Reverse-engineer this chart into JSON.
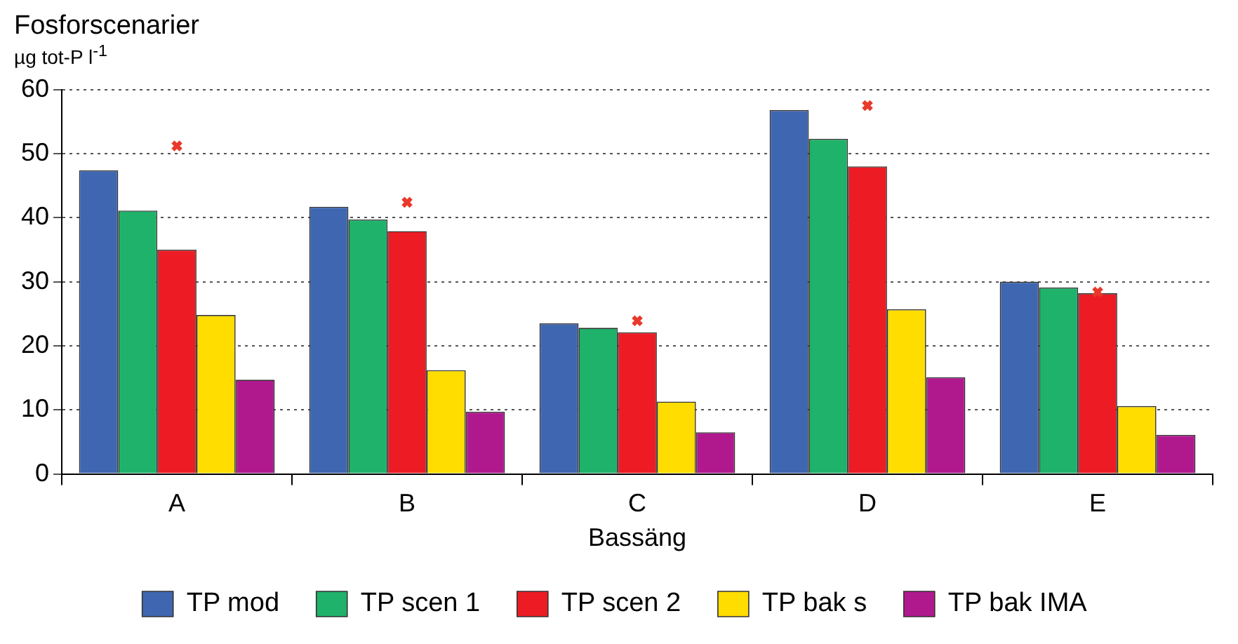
{
  "chart_data": {
    "type": "bar",
    "title": "Fosforscenarier",
    "ylabel": "µg tot-P l$^{-1}$",
    "xlabel": "Bassäng",
    "categories": [
      "A",
      "B",
      "C",
      "D",
      "E"
    ],
    "series": [
      {
        "name": "TP mod",
        "color": "#3f67b1",
        "values": [
          47.4,
          41.7,
          23.5,
          56.8,
          30.0
        ]
      },
      {
        "name": "TP scen 1",
        "color": "#1fb26a",
        "values": [
          41.1,
          39.7,
          22.8,
          52.3,
          29.1
        ]
      },
      {
        "name": "TP scen 2",
        "color": "#ed1c24",
        "values": [
          35.0,
          37.9,
          22.1,
          48.0,
          28.2
        ]
      },
      {
        "name": "TP bak s",
        "color": "#ffdd00",
        "values": [
          24.8,
          16.2,
          11.3,
          25.7,
          10.6
        ]
      },
      {
        "name": "TP bak IMA",
        "color": "#b0198e",
        "values": [
          14.7,
          9.7,
          6.5,
          15.1,
          6.1
        ]
      },
      {
        "type": "scatter",
        "color": "#e8392a",
        "marker": "cross",
        "x": [
          "A",
          "B",
          "C",
          "D",
          "E"
        ],
        "values": [
          51.2,
          42.4,
          23.9,
          57.5,
          28.4
        ]
      }
    ],
    "ylim": [
      0,
      60
    ],
    "yticks": [
      0,
      10,
      20,
      30,
      40,
      50,
      60
    ],
    "grid": "y",
    "legend": "bottom"
  }
}
